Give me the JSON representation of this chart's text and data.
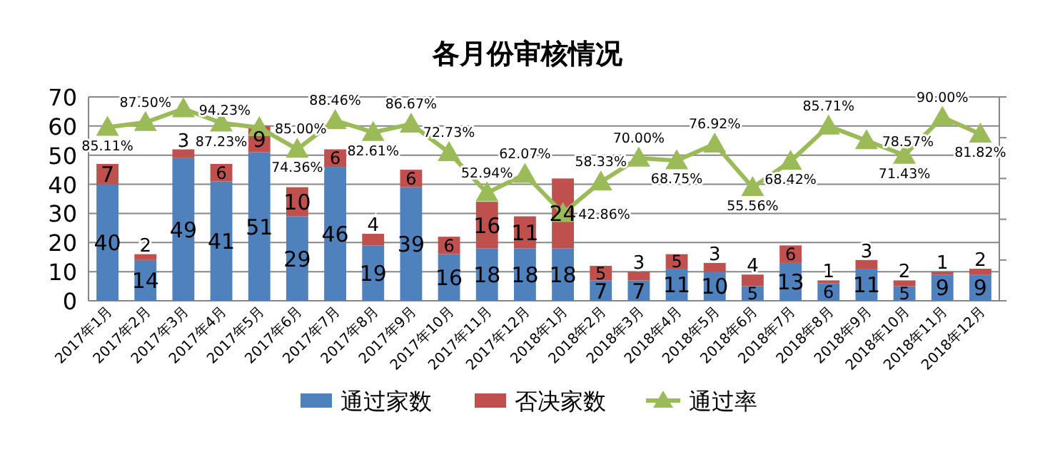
{
  "chart_data": {
    "type": "bar",
    "title": "各月份审核情况",
    "stacked": true,
    "grid": "y",
    "legend": "bottom",
    "data_labels": true,
    "categories": [
      "2017年1月",
      "2017年2月",
      "2017年3月",
      "2017年4月",
      "2017年5月",
      "2017年6月",
      "2017年7月",
      "2017年8月",
      "2017年9月",
      "2017年10月",
      "2017年11月",
      "2017年12月",
      "2018年1月",
      "2018年2月",
      "2018年3月",
      "2018年4月",
      "2018年5月",
      "2018年6月",
      "2018年7月",
      "2018年8月",
      "2018年9月",
      "2018年10月",
      "2018年11月",
      "2018年12月"
    ],
    "series": [
      {
        "name": "通过家数",
        "color": "#4f81bd",
        "values": [
          40,
          14,
          49,
          41,
          51,
          29,
          46,
          19,
          39,
          16,
          18,
          18,
          18,
          7,
          7,
          11,
          10,
          5,
          13,
          6,
          11,
          5,
          9,
          9
        ]
      },
      {
        "name": "否决家数",
        "color": "#c0504d",
        "values": [
          7,
          2,
          3,
          6,
          9,
          10,
          6,
          4,
          6,
          6,
          16,
          11,
          24,
          5,
          3,
          5,
          3,
          4,
          6,
          1,
          3,
          2,
          1,
          2
        ]
      },
      {
        "name": "通过率",
        "type": "line",
        "axis": "y2",
        "marker": "triangle",
        "color": "#9bbb59",
        "values": [
          85.11,
          87.5,
          94.23,
          87.23,
          85.0,
          74.36,
          88.46,
          82.61,
          86.67,
          72.73,
          52.94,
          62.07,
          42.86,
          58.33,
          70.0,
          68.75,
          76.92,
          55.56,
          68.42,
          85.71,
          78.57,
          71.43,
          90.0,
          81.82
        ],
        "value_labels": [
          "85.11%",
          "87.50%",
          "94.23%",
          "87.23%",
          "85.00%",
          "74.36%",
          "88.46%",
          "82.61%",
          "86.67%",
          "72.73%",
          "52.94%",
          "62.07%",
          "42.86%",
          "58.33%",
          "70.00%",
          "68.75%",
          "76.92%",
          "55.56%",
          "68.42%",
          "85.71%",
          "78.57%",
          "71.43%",
          "90.00%",
          "81.82%"
        ]
      }
    ],
    "ylim": [
      0,
      70
    ],
    "yticks": [
      0,
      10,
      20,
      30,
      40,
      50,
      60,
      70
    ],
    "y2lim": [
      0,
      100
    ],
    "y2ticks": [
      {
        "value": 0,
        "label": null
      },
      {
        "value": 20,
        "label": null
      },
      {
        "value": 40,
        "label": null
      },
      {
        "value": 60,
        "label": null
      },
      {
        "value": 80,
        "label": null
      },
      {
        "value": 100,
        "label": null
      }
    ]
  }
}
